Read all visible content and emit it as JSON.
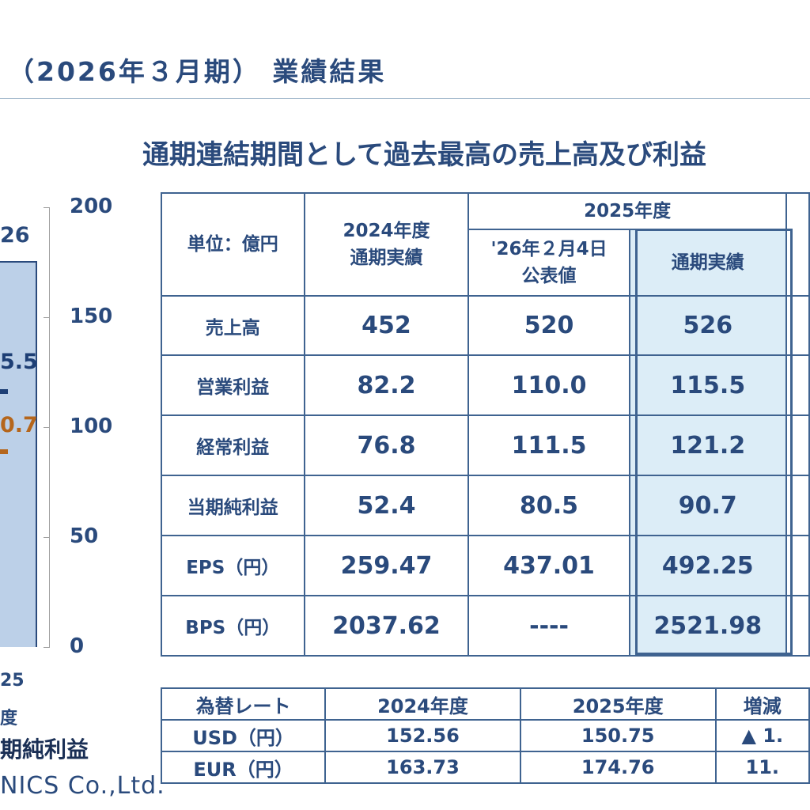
{
  "page": {
    "title": "（2026年３月期） 業績結果",
    "headline": "通期連結期間として過去最高の売上高及び利益"
  },
  "chart_fragment": {
    "bar_top_label": "26",
    "blue_value_label": "5.5",
    "orange_value_label": "0.7",
    "y_ticks": [
      "200",
      "150",
      "100",
      "50",
      "0"
    ],
    "x_label_line1": "25",
    "x_label_line2": "度",
    "legend_label": "期純利益",
    "colors": {
      "bar": "#bcd0e8",
      "blue": "#1e3f75",
      "orange": "#b5661c"
    }
  },
  "company_fragment": "NICS Co.,Ltd.",
  "results_table": {
    "unit_label": "単位：億円",
    "col_2024": {
      "line1": "2024年度",
      "line2": "通期実績"
    },
    "group_2025": "2025年度",
    "col_forecast": {
      "line1": "'26年２月4日",
      "line2": "公表値"
    },
    "col_actual": "通期実績",
    "rows": [
      {
        "label": "売上高",
        "v2024": "452",
        "forecast": "520",
        "actual": "526"
      },
      {
        "label": "営業利益",
        "v2024": "82.2",
        "forecast": "110.0",
        "actual": "115.5"
      },
      {
        "label": "経常利益",
        "v2024": "76.8",
        "forecast": "111.5",
        "actual": "121.2"
      },
      {
        "label": "当期純利益",
        "v2024": "52.4",
        "forecast": "80.5",
        "actual": "90.7"
      },
      {
        "label": "EPS（円）",
        "v2024": "259.47",
        "forecast": "437.01",
        "actual": "492.25"
      },
      {
        "label": "BPS（円）",
        "v2024": "2037.62",
        "forecast": "----",
        "actual": "2521.98"
      }
    ],
    "highlight_color": "#dcedf7"
  },
  "fx_table": {
    "headers": [
      "為替レート",
      "2024年度",
      "2025年度",
      "増減"
    ],
    "rows": [
      {
        "label": "USD（円）",
        "v2024": "152.56",
        "v2025": "150.75",
        "change": "▲ 1."
      },
      {
        "label": "EUR（円）",
        "v2024": "163.73",
        "v2025": "174.76",
        "change": "11."
      }
    ]
  }
}
